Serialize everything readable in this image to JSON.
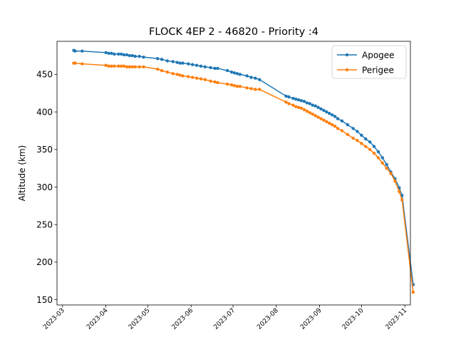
{
  "chart_data": {
    "type": "line",
    "title": "FLOCK 4EP 2 - 46820 - Priority :4",
    "xlabel": "",
    "ylabel": "Altitude (km)",
    "xlim": [
      "2023-02-25",
      "2023-11-05"
    ],
    "ylim": [
      143,
      494
    ],
    "x_ticks": [
      "2023-03",
      "2023-04",
      "2023-05",
      "2023-06",
      "2023-07",
      "2023-08",
      "2023-09",
      "2023-10",
      "2023-11"
    ],
    "y_ticks": [
      150,
      200,
      250,
      300,
      350,
      400,
      450
    ],
    "legend": {
      "position": "top-right"
    },
    "series": [
      {
        "name": "Apogee",
        "color": "#1f77b4",
        "points": [
          [
            "2023-03-09",
            482
          ],
          [
            "2023-03-10",
            481
          ],
          [
            "2023-03-15",
            481
          ],
          [
            "2023-04-01",
            479
          ],
          [
            "2023-04-03",
            478
          ],
          [
            "2023-04-05",
            478
          ],
          [
            "2023-04-07",
            477
          ],
          [
            "2023-04-10",
            477
          ],
          [
            "2023-04-12",
            477
          ],
          [
            "2023-04-14",
            476
          ],
          [
            "2023-04-16",
            476
          ],
          [
            "2023-04-18",
            475
          ],
          [
            "2023-04-20",
            475
          ],
          [
            "2023-04-22",
            474
          ],
          [
            "2023-04-25",
            474
          ],
          [
            "2023-04-28",
            473
          ],
          [
            "2023-05-08",
            471
          ],
          [
            "2023-05-11",
            470
          ],
          [
            "2023-05-15",
            468
          ],
          [
            "2023-05-19",
            467
          ],
          [
            "2023-05-22",
            466
          ],
          [
            "2023-05-24",
            465
          ],
          [
            "2023-05-26",
            465
          ],
          [
            "2023-05-30",
            464
          ],
          [
            "2023-06-02",
            463
          ],
          [
            "2023-06-05",
            462
          ],
          [
            "2023-06-08",
            461
          ],
          [
            "2023-06-11",
            460
          ],
          [
            "2023-06-15",
            459
          ],
          [
            "2023-06-18",
            458
          ],
          [
            "2023-06-20",
            458
          ],
          [
            "2023-06-27",
            455
          ],
          [
            "2023-06-30",
            453
          ],
          [
            "2023-07-02",
            452
          ],
          [
            "2023-07-04",
            451
          ],
          [
            "2023-07-06",
            450
          ],
          [
            "2023-07-11",
            448
          ],
          [
            "2023-07-14",
            446
          ],
          [
            "2023-07-17",
            445
          ],
          [
            "2023-07-20",
            443
          ],
          [
            "2023-08-08",
            421
          ],
          [
            "2023-08-10",
            420
          ],
          [
            "2023-08-13",
            418
          ],
          [
            "2023-08-15",
            417
          ],
          [
            "2023-08-17",
            416
          ],
          [
            "2023-08-19",
            415
          ],
          [
            "2023-08-21",
            414
          ],
          [
            "2023-08-23",
            412
          ],
          [
            "2023-08-25",
            411
          ],
          [
            "2023-08-27",
            409
          ],
          [
            "2023-08-29",
            408
          ],
          [
            "2023-08-31",
            406
          ],
          [
            "2023-09-02",
            404
          ],
          [
            "2023-09-04",
            402
          ],
          [
            "2023-09-06",
            400
          ],
          [
            "2023-09-08",
            398
          ],
          [
            "2023-09-10",
            396
          ],
          [
            "2023-09-12",
            394
          ],
          [
            "2023-09-14",
            391
          ],
          [
            "2023-09-17",
            388
          ],
          [
            "2023-09-21",
            383
          ],
          [
            "2023-09-25",
            378
          ],
          [
            "2023-09-28",
            374
          ],
          [
            "2023-10-01",
            369
          ],
          [
            "2023-10-04",
            364
          ],
          [
            "2023-10-07",
            360
          ],
          [
            "2023-10-10",
            354
          ],
          [
            "2023-10-13",
            347
          ],
          [
            "2023-10-16",
            339
          ],
          [
            "2023-10-19",
            330
          ],
          [
            "2023-10-22",
            320
          ],
          [
            "2023-10-25",
            311
          ],
          [
            "2023-10-28",
            299
          ],
          [
            "2023-10-30",
            289
          ],
          [
            "2023-11-07",
            170
          ]
        ]
      },
      {
        "name": "Perigee",
        "color": "#ff7f0e",
        "points": [
          [
            "2023-03-09",
            465
          ],
          [
            "2023-03-10",
            465
          ],
          [
            "2023-03-15",
            464
          ],
          [
            "2023-04-01",
            462
          ],
          [
            "2023-04-03",
            461
          ],
          [
            "2023-04-05",
            461
          ],
          [
            "2023-04-07",
            461
          ],
          [
            "2023-04-10",
            461
          ],
          [
            "2023-04-12",
            461
          ],
          [
            "2023-04-14",
            461
          ],
          [
            "2023-04-16",
            460
          ],
          [
            "2023-04-18",
            460
          ],
          [
            "2023-04-20",
            460
          ],
          [
            "2023-04-22",
            460
          ],
          [
            "2023-04-25",
            460
          ],
          [
            "2023-04-28",
            460
          ],
          [
            "2023-05-08",
            457
          ],
          [
            "2023-05-11",
            455
          ],
          [
            "2023-05-15",
            453
          ],
          [
            "2023-05-19",
            451
          ],
          [
            "2023-05-22",
            450
          ],
          [
            "2023-05-24",
            449
          ],
          [
            "2023-05-26",
            448
          ],
          [
            "2023-05-30",
            447
          ],
          [
            "2023-06-02",
            446
          ],
          [
            "2023-06-05",
            445
          ],
          [
            "2023-06-08",
            444
          ],
          [
            "2023-06-11",
            443
          ],
          [
            "2023-06-15",
            441
          ],
          [
            "2023-06-18",
            440
          ],
          [
            "2023-06-20",
            439
          ],
          [
            "2023-06-27",
            437
          ],
          [
            "2023-06-30",
            436
          ],
          [
            "2023-07-02",
            435
          ],
          [
            "2023-07-04",
            434
          ],
          [
            "2023-07-06",
            434
          ],
          [
            "2023-07-11",
            432
          ],
          [
            "2023-07-14",
            431
          ],
          [
            "2023-07-17",
            430
          ],
          [
            "2023-07-20",
            430
          ],
          [
            "2023-08-08",
            413
          ],
          [
            "2023-08-10",
            411
          ],
          [
            "2023-08-13",
            409
          ],
          [
            "2023-08-15",
            407
          ],
          [
            "2023-08-17",
            406
          ],
          [
            "2023-08-19",
            405
          ],
          [
            "2023-08-21",
            403
          ],
          [
            "2023-08-23",
            401
          ],
          [
            "2023-08-25",
            399
          ],
          [
            "2023-08-27",
            397
          ],
          [
            "2023-08-29",
            395
          ],
          [
            "2023-08-31",
            393
          ],
          [
            "2023-09-02",
            391
          ],
          [
            "2023-09-04",
            389
          ],
          [
            "2023-09-06",
            387
          ],
          [
            "2023-09-08",
            385
          ],
          [
            "2023-09-10",
            383
          ],
          [
            "2023-09-12",
            381
          ],
          [
            "2023-09-14",
            378
          ],
          [
            "2023-09-17",
            375
          ],
          [
            "2023-09-21",
            370
          ],
          [
            "2023-09-25",
            365
          ],
          [
            "2023-09-28",
            362
          ],
          [
            "2023-10-01",
            358
          ],
          [
            "2023-10-04",
            354
          ],
          [
            "2023-10-07",
            350
          ],
          [
            "2023-10-10",
            345
          ],
          [
            "2023-10-13",
            339
          ],
          [
            "2023-10-16",
            332
          ],
          [
            "2023-10-19",
            325
          ],
          [
            "2023-10-22",
            318
          ],
          [
            "2023-10-25",
            308
          ],
          [
            "2023-10-28",
            294
          ],
          [
            "2023-10-30",
            283
          ],
          [
            "2023-11-07",
            160
          ]
        ]
      }
    ]
  }
}
